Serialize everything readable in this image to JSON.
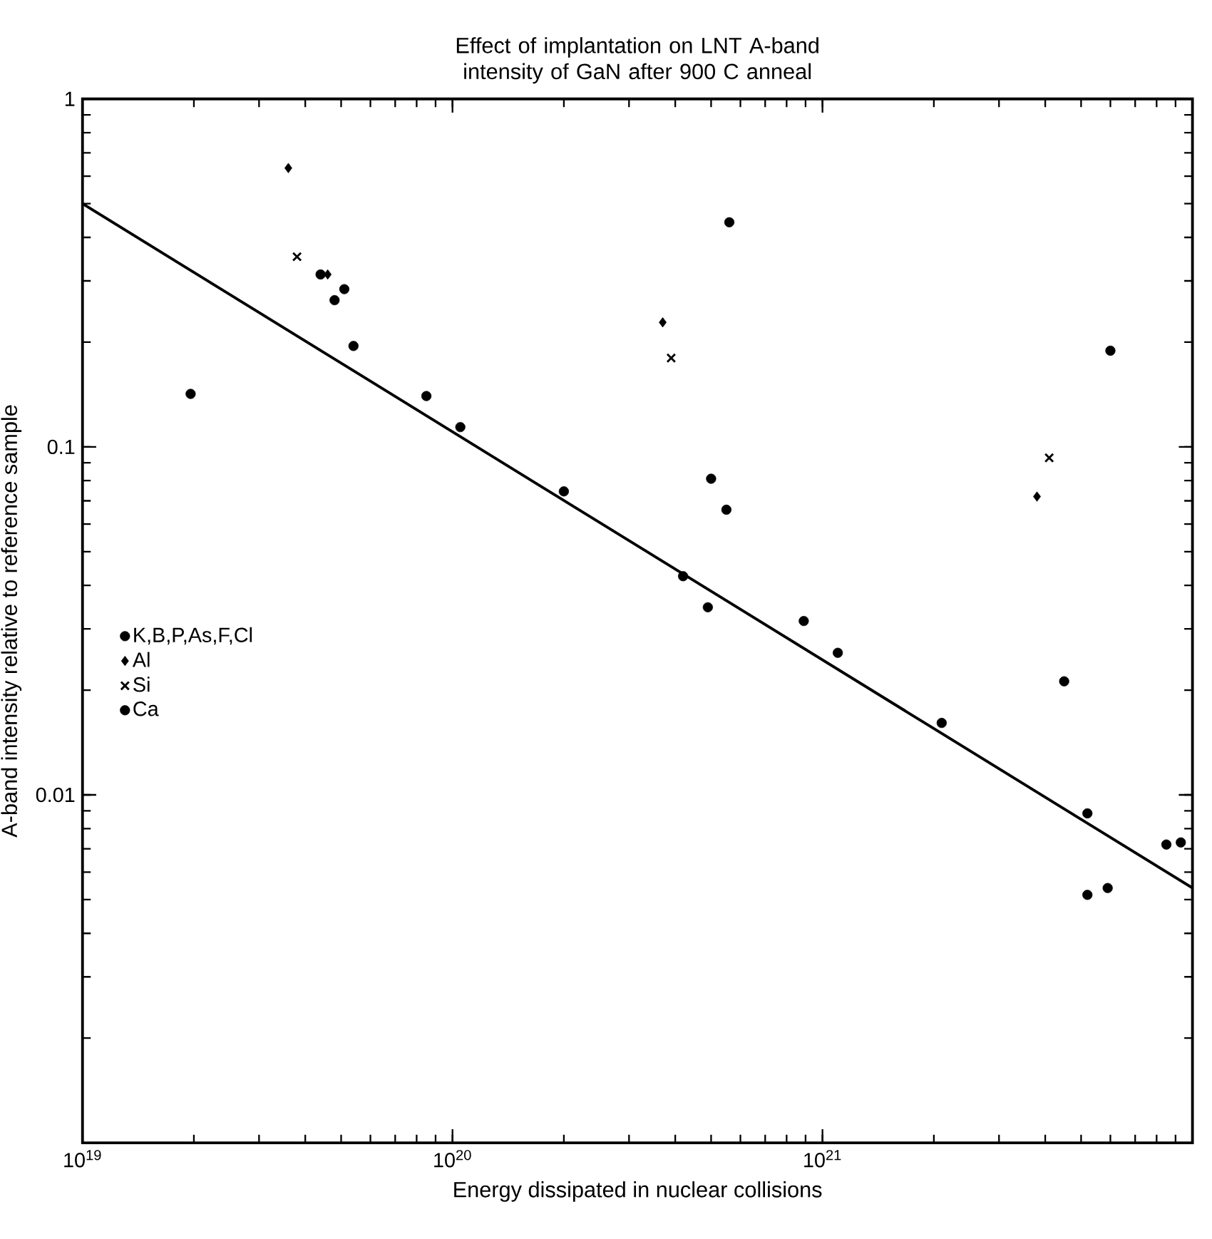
{
  "chart_data": {
    "type": "scatter",
    "title": "Effect of implantation on LNT A-band intensity of GaN after 900 C anneal",
    "xlabel": "Energy dissipated in nuclear collisions",
    "ylabel": "A-band intensity relative to reference sample",
    "log": "xy",
    "xlim": [
      1e+19,
      1e+22
    ],
    "ylim": [
      0.001,
      1
    ],
    "xticks": [
      {
        "value": 1e+19,
        "label": "10$^{19}$"
      },
      {
        "value": 1e+20,
        "label": "10$^{20}$"
      },
      {
        "value": 1e+21,
        "label": "10$^{21}$"
      },
      {
        "value": 1e+22,
        "label": null
      }
    ],
    "yticks": [
      {
        "value": 0.001,
        "label": null
      },
      0.01,
      0.1,
      1
    ],
    "legend": "left",
    "grid": false,
    "series": [
      {
        "name": "K,B,P,As,F,Cl",
        "color": "#000000",
        "marker": "circle",
        "x": [
          1.96e+19,
          5.4e+19,
          4.8e+19,
          5.1e+19,
          8.5e+19,
          1.05e+20,
          2e+20,
          5.6e+20,
          4.2e+20,
          5e+20,
          5.5e+20,
          4.9e+20,
          8.9e+20,
          1.1e+21,
          2.1e+21,
          4.5e+21,
          6e+21,
          5.2e+21,
          5.2e+21,
          5.9e+21,
          8.5e+21,
          9.3e+21
        ],
        "values": [
          0.142,
          0.195,
          0.264,
          0.284,
          0.14,
          0.114,
          0.0745,
          0.442,
          0.0425,
          0.081,
          0.066,
          0.0346,
          0.0316,
          0.0256,
          0.0161,
          0.0212,
          0.189,
          0.00885,
          0.00516,
          0.0054,
          0.0072,
          0.0073
        ]
      },
      {
        "name": "Al",
        "color": "#000000",
        "marker": "diamond",
        "x": [
          3.6e+19,
          4.6e+19,
          3.7e+20,
          3.8e+21
        ],
        "values": [
          0.633,
          0.313,
          0.228,
          0.072
        ]
      },
      {
        "name": "Si",
        "color": "#000000",
        "marker": "cross",
        "x": [
          3.8e+19,
          3.9e+20,
          4.1e+21
        ],
        "values": [
          0.352,
          0.18,
          0.093
        ]
      },
      {
        "name": "Ca",
        "color": "#000000",
        "marker": "circle",
        "x": [
          4.4e+19
        ],
        "values": [
          0.313
        ]
      },
      {
        "type": "line",
        "color": "#000000",
        "marker": "none",
        "line_style": "solid",
        "x": [
          1e+19,
          1e+22
        ],
        "values": [
          0.5,
          0.0054
        ]
      }
    ]
  }
}
